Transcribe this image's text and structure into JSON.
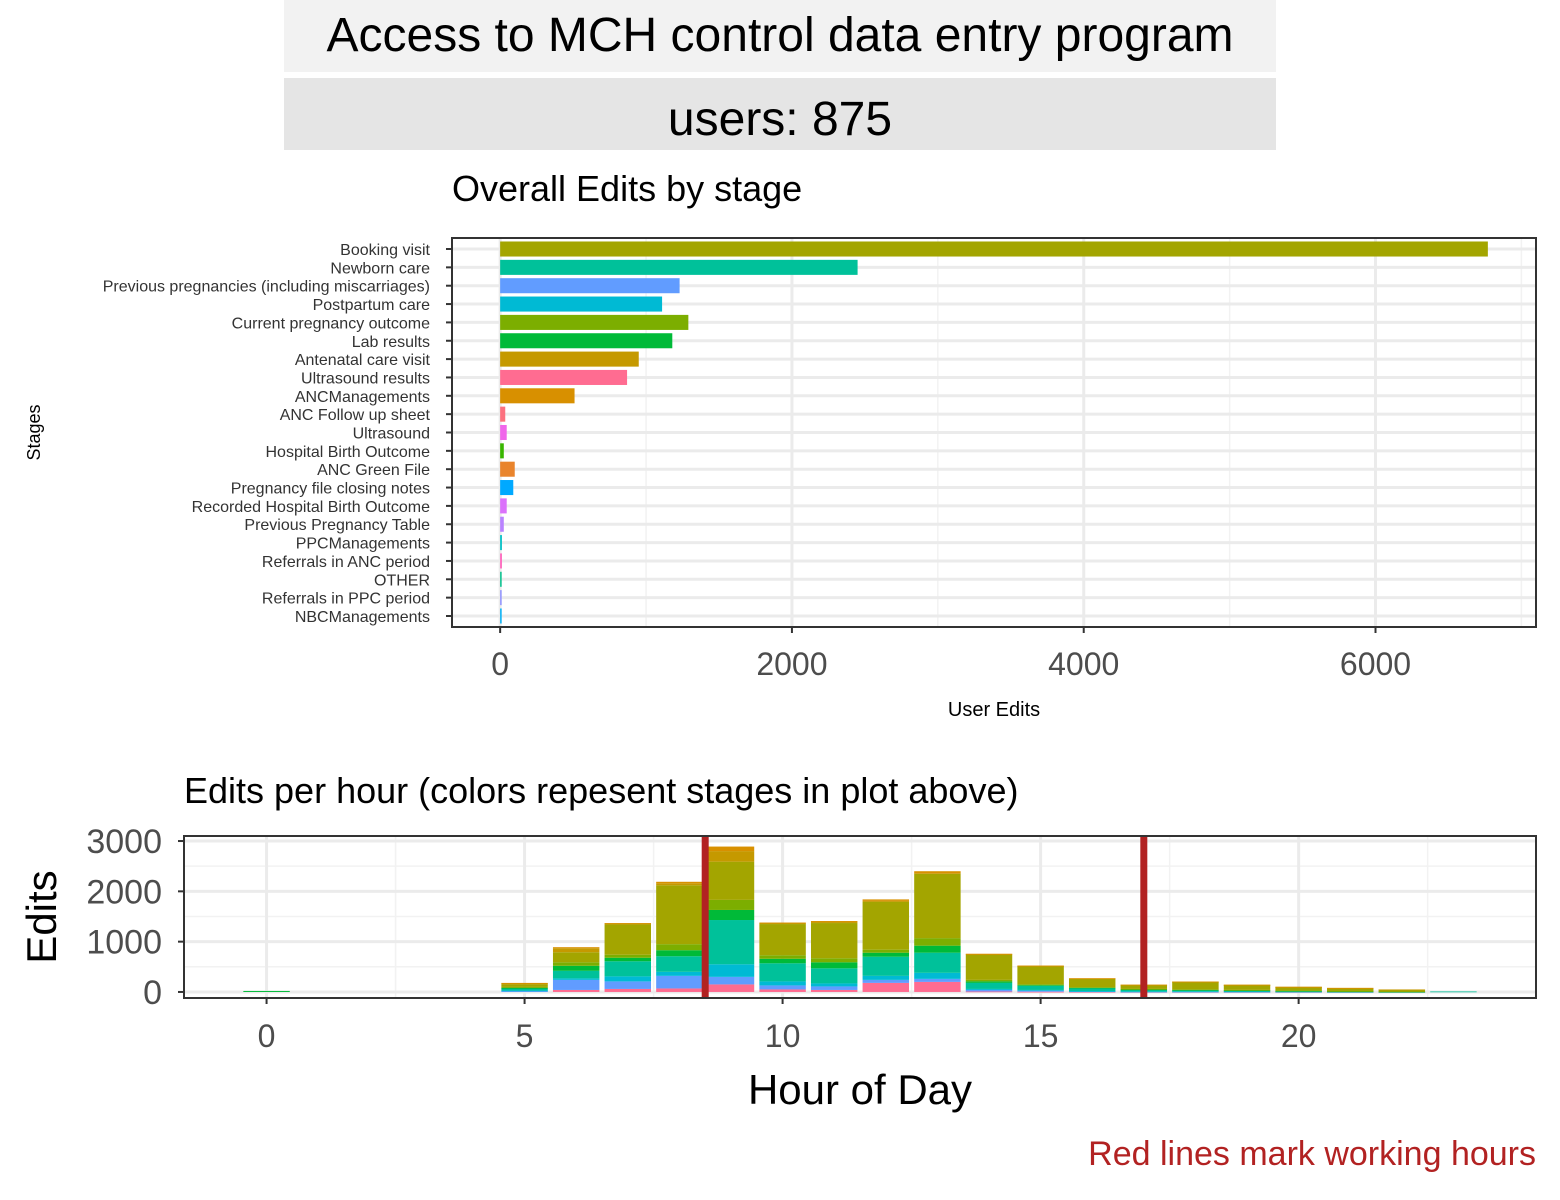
{
  "header": {
    "title": "Access to MCH control data entry program",
    "users": "users: 875"
  },
  "footnote": "Red lines mark working hours",
  "chart_data": [
    {
      "type": "bar",
      "orientation": "horizontal",
      "title": "Overall Edits by stage",
      "xlabel": "User Edits",
      "ylabel": "Stages",
      "xlim": [
        -330,
        7100
      ],
      "xticks": [
        0,
        2000,
        4000,
        6000
      ],
      "grid": true,
      "categories": [
        "Booking visit",
        "Newborn care",
        "Previous pregnancies (including miscarriages)",
        "Postpartum care",
        "Current pregnancy outcome",
        "Lab results",
        "Antenatal care visit",
        "Ultrasound results",
        "ANCManagements",
        "ANC Follow up sheet",
        "Ultrasound",
        "Hospital Birth Outcome",
        "ANC Green File",
        "Pregnancy file closing notes",
        "Recorded Hospital Birth Outcome",
        "Previous Pregnancy Table",
        "PPCManagements",
        "Referrals in ANC period",
        "OTHER",
        "Referrals in PPC period",
        "NBCManagements"
      ],
      "values": [
        6770,
        2450,
        1230,
        1110,
        1290,
        1180,
        950,
        870,
        510,
        35,
        45,
        25,
        100,
        90,
        45,
        25,
        12,
        12,
        10,
        3,
        2
      ],
      "colors": [
        "#a3a500",
        "#00c19a",
        "#619cff",
        "#00bad4",
        "#7cae00",
        "#00ba38",
        "#c59900",
        "#ff6c91",
        "#d89000",
        "#fc717f",
        "#f066ea",
        "#39b600",
        "#e9842c",
        "#00a9ff",
        "#db72fb",
        "#b983ff",
        "#00bfc4",
        "#ff62bc",
        "#00c08b",
        "#8f91ff",
        "#00b0f6"
      ]
    },
    {
      "type": "bar",
      "stacked": true,
      "title": "Edits per hour (colors repesent stages in plot above)",
      "xlabel": "Hour of Day",
      "ylabel": "Edits",
      "xlim": [
        -1.6,
        24.6
      ],
      "ylim": [
        -120,
        3100
      ],
      "xticks": [
        0,
        5,
        10,
        15,
        20
      ],
      "yticks": [
        0,
        1000,
        2000,
        3000
      ],
      "grid": true,
      "reference_lines_x": [
        8.5,
        17
      ],
      "reference_line_color": "#b22222",
      "series": [
        {
          "name": "Ultrasound results",
          "color": "#ff6c91",
          "values": [
            0,
            0,
            0,
            0,
            0,
            0,
            40,
            60,
            70,
            150,
            50,
            40,
            180,
            200,
            10,
            5,
            3,
            2,
            2,
            1,
            1,
            1,
            0,
            0
          ]
        },
        {
          "name": "Previous pregnancies (including miscarriages)",
          "color": "#619cff",
          "values": [
            0,
            0,
            0,
            0,
            0,
            20,
            200,
            150,
            250,
            150,
            80,
            70,
            60,
            60,
            30,
            20,
            10,
            5,
            5,
            5,
            4,
            2,
            1,
            0
          ]
        },
        {
          "name": "Postpartum care",
          "color": "#00bad4",
          "values": [
            0,
            0,
            0,
            0,
            0,
            10,
            30,
            100,
            80,
            250,
            80,
            60,
            80,
            120,
            20,
            15,
            5,
            5,
            5,
            4,
            3,
            2,
            1,
            0
          ]
        },
        {
          "name": "Newborn care",
          "color": "#00c19a",
          "values": [
            0,
            0,
            0,
            0,
            0,
            40,
            150,
            300,
            310,
            880,
            360,
            300,
            380,
            400,
            120,
            80,
            60,
            30,
            20,
            15,
            10,
            5,
            3,
            10
          ]
        },
        {
          "name": "Lab results",
          "color": "#00ba38",
          "values": [
            20,
            0,
            0,
            0,
            0,
            10,
            100,
            70,
            120,
            200,
            90,
            120,
            80,
            140,
            30,
            15,
            8,
            10,
            10,
            8,
            6,
            4,
            2,
            0
          ]
        },
        {
          "name": "Current pregnancy outcome",
          "color": "#7cae00",
          "values": [
            0,
            0,
            0,
            0,
            0,
            20,
            70,
            60,
            120,
            200,
            70,
            80,
            60,
            150,
            30,
            20,
            10,
            8,
            10,
            8,
            6,
            5,
            2,
            0
          ]
        },
        {
          "name": "Booking visit",
          "color": "#a3a500",
          "values": [
            0,
            0,
            0,
            0,
            0,
            50,
            200,
            600,
            1170,
            760,
            620,
            700,
            950,
            1280,
            500,
            360,
            170,
            80,
            150,
            100,
            70,
            60,
            40,
            0
          ]
        },
        {
          "name": "Antenatal care visit",
          "color": "#c59900",
          "values": [
            0,
            0,
            0,
            0,
            0,
            20,
            80,
            20,
            40,
            210,
            20,
            20,
            20,
            10,
            10,
            5,
            4,
            3,
            3,
            2,
            2,
            1,
            1,
            0
          ]
        },
        {
          "name": "ANCManagements",
          "color": "#d89000",
          "values": [
            0,
            0,
            0,
            0,
            0,
            10,
            20,
            10,
            30,
            90,
            10,
            20,
            30,
            40,
            10,
            5,
            3,
            2,
            2,
            1,
            1,
            1,
            0,
            0
          ]
        }
      ]
    }
  ]
}
